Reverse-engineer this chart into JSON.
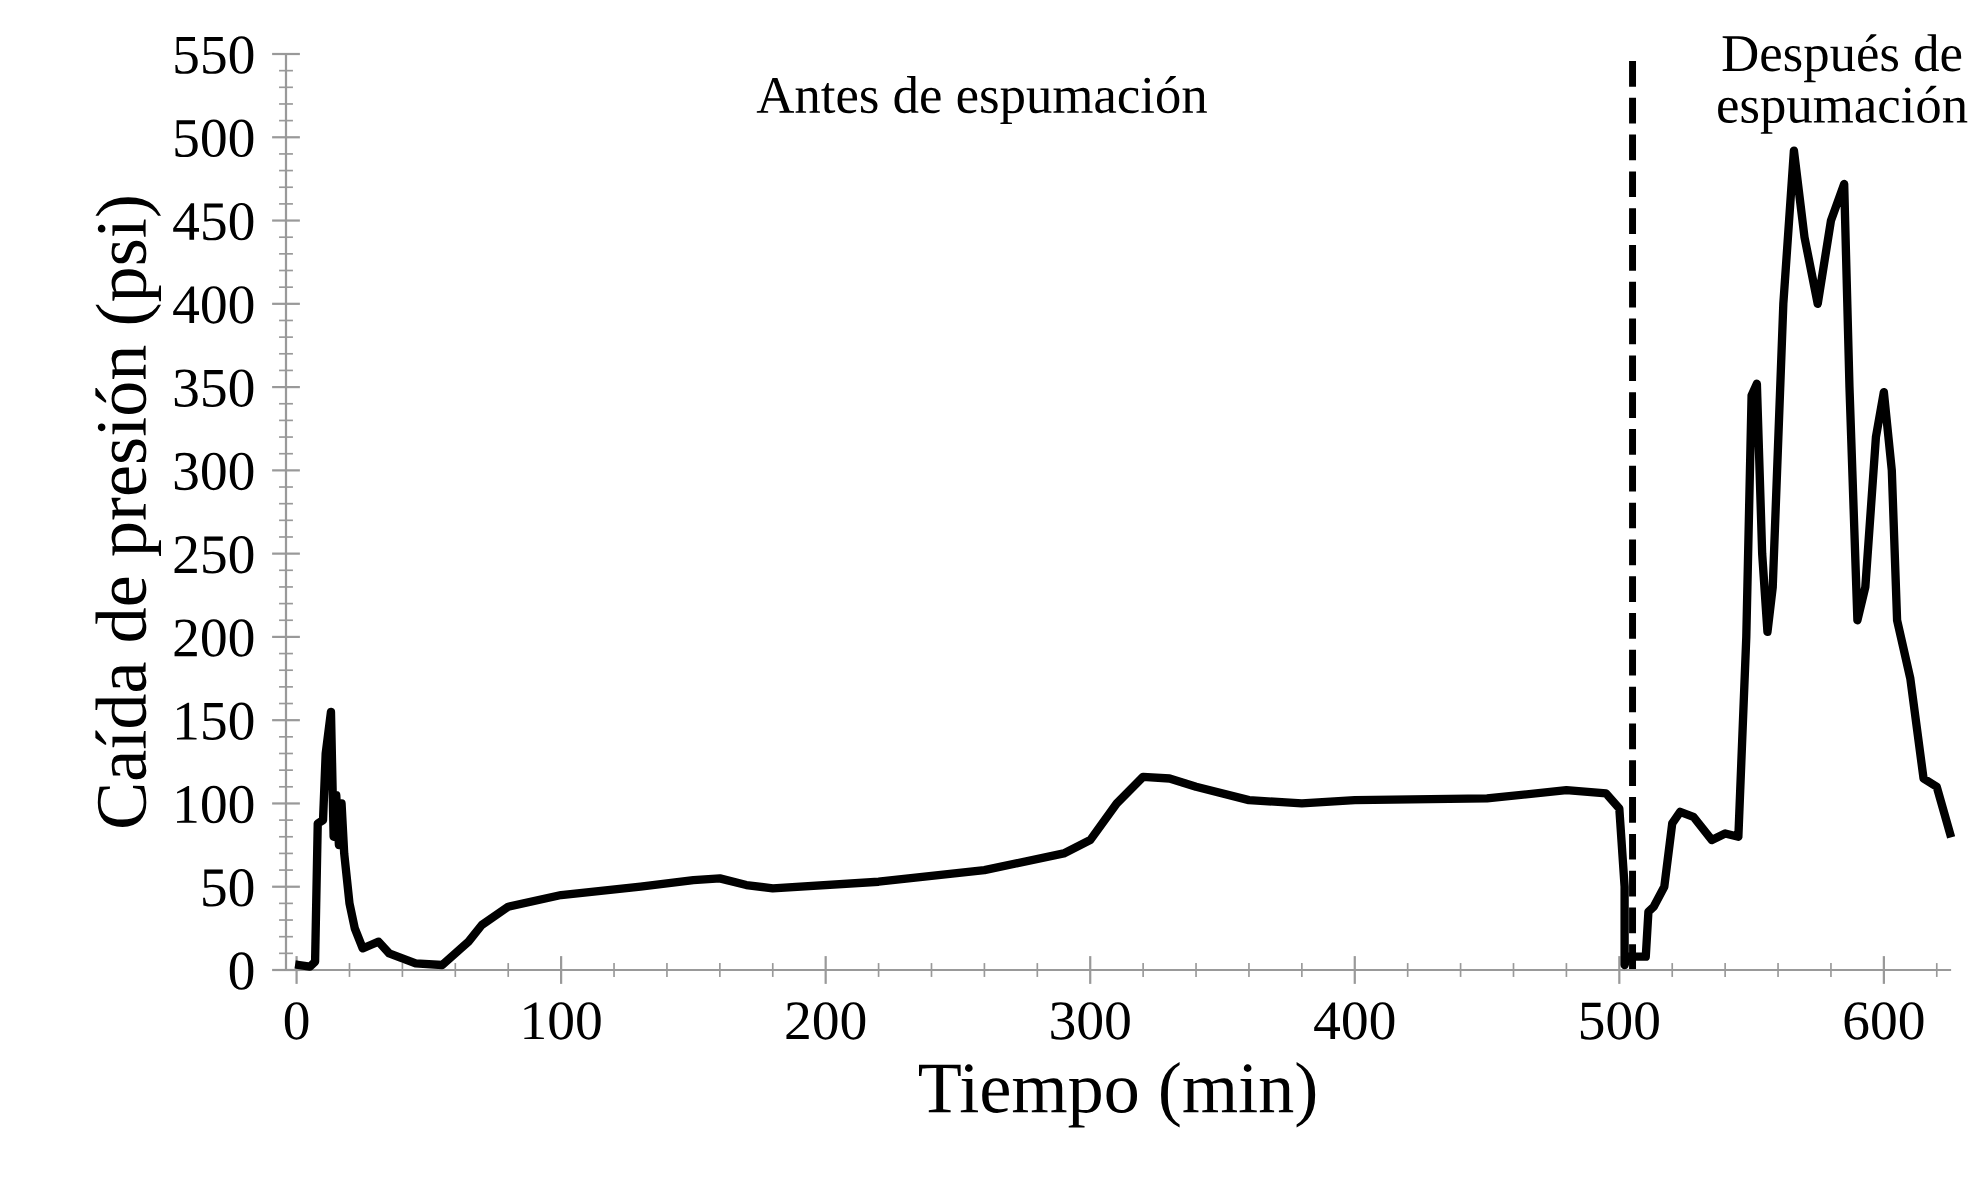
{
  "chart_data": {
    "type": "line",
    "xlabel": "Tiempo (min)",
    "ylabel": "Caída de presión (psi)",
    "annotations": [
      "Antes de espumación",
      "Después de\nespumación"
    ],
    "xlim": [
      -4,
      625
    ],
    "ylim": [
      0,
      550
    ],
    "xticks": [
      0,
      {
        "value": 20,
        "label": null
      },
      {
        "value": 40,
        "label": null
      },
      {
        "value": 60,
        "label": null
      },
      {
        "value": 80,
        "label": null
      },
      100,
      {
        "value": 120,
        "label": null
      },
      {
        "value": 140,
        "label": null
      },
      {
        "value": 160,
        "label": null
      },
      {
        "value": 180,
        "label": null
      },
      200,
      {
        "value": 220,
        "label": null
      },
      {
        "value": 240,
        "label": null
      },
      {
        "value": 260,
        "label": null
      },
      {
        "value": 280,
        "label": null
      },
      300,
      {
        "value": 320,
        "label": null
      },
      {
        "value": 340,
        "label": null
      },
      {
        "value": 360,
        "label": null
      },
      {
        "value": 380,
        "label": null
      },
      400,
      {
        "value": 420,
        "label": null
      },
      {
        "value": 440,
        "label": null
      },
      {
        "value": 460,
        "label": null
      },
      {
        "value": 480,
        "label": null
      },
      500,
      {
        "value": 520,
        "label": null
      },
      {
        "value": 540,
        "label": null
      },
      {
        "value": 560,
        "label": null
      },
      {
        "value": 580,
        "label": null
      },
      600,
      {
        "value": 620,
        "label": null
      }
    ],
    "yticks": [
      0,
      50,
      100,
      150,
      200,
      250,
      300,
      350,
      400,
      450,
      500,
      550
    ],
    "grid": false,
    "legend": false,
    "marker": "none",
    "line_style": "solid",
    "ref_lines": [
      {
        "axis": "x",
        "value": 505,
        "label": null,
        "color": "#000000",
        "line_style": "dashed"
      }
    ],
    "series": [
      {
        "color": "#000000",
        "x": [
          1,
          5,
          7,
          8,
          10,
          11,
          13,
          14,
          15,
          16,
          17,
          18,
          20,
          22,
          25,
          28,
          31,
          35,
          40,
          45,
          55,
          60,
          65,
          70,
          80,
          100,
          130,
          150,
          160,
          170,
          180,
          220,
          260,
          290,
          300,
          310,
          320,
          330,
          340,
          360,
          380,
          400,
          450,
          480,
          495,
          500,
          502,
          502,
          503,
          510,
          511,
          513,
          517,
          520,
          523,
          528,
          535,
          540,
          545,
          548,
          550,
          552,
          554,
          556,
          558,
          562,
          566,
          570,
          575,
          580,
          585,
          587,
          590,
          593,
          597,
          600,
          603,
          605,
          610,
          615,
          620,
          625
        ],
        "values": [
          3,
          2,
          5,
          88,
          90,
          130,
          155,
          80,
          105,
          75,
          100,
          70,
          40,
          25,
          13,
          15,
          17,
          10,
          7,
          4,
          3,
          10,
          17,
          27,
          38,
          45,
          50,
          54,
          55,
          51,
          49,
          53,
          60,
          70,
          78,
          100,
          116,
          115,
          110,
          102,
          100,
          102,
          103,
          108,
          106,
          97,
          50,
          3,
          8,
          8,
          35,
          38,
          50,
          88,
          95,
          92,
          78,
          82,
          80,
          200,
          345,
          352,
          250,
          203,
          230,
          400,
          492,
          440,
          400,
          450,
          472,
          350,
          210,
          230,
          320,
          347,
          300,
          210,
          175,
          115,
          110,
          82
        ]
      }
    ]
  }
}
